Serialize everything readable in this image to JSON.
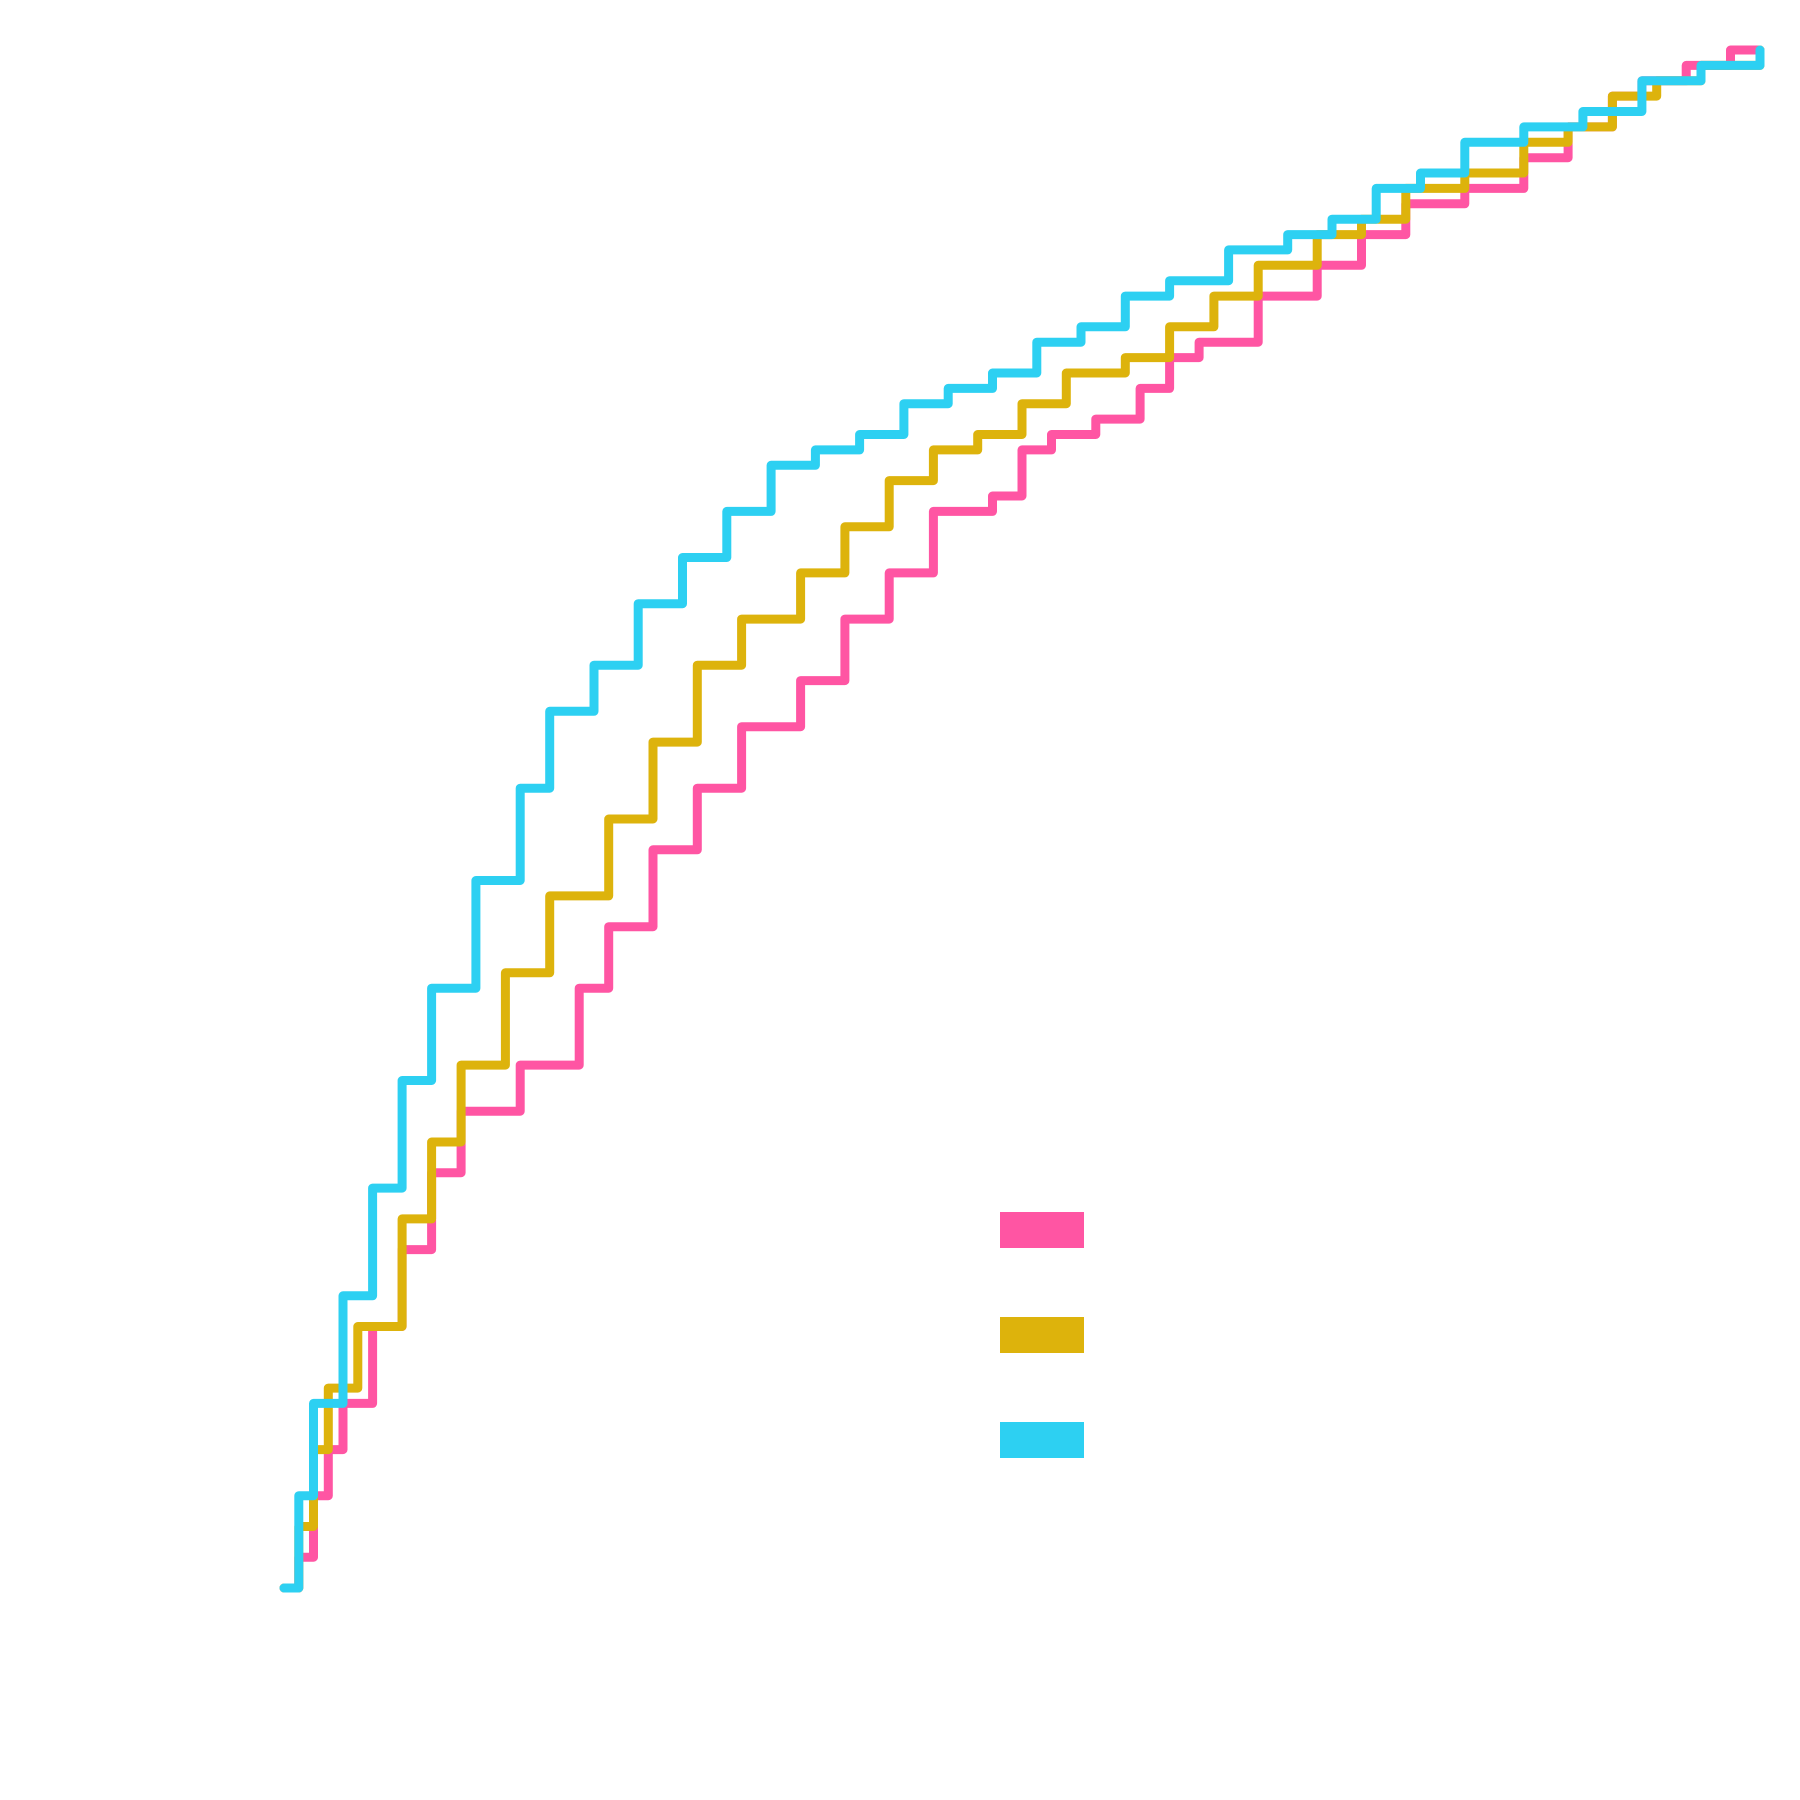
{
  "chart_data": {
    "type": "line",
    "title": "",
    "xlabel": "",
    "ylabel": "",
    "xlim": [
      0,
      1
    ],
    "ylim": [
      0,
      1
    ],
    "grid": false,
    "legend": {
      "position": "center-right",
      "entries": [
        {
          "label": "",
          "color": "#FF55A3"
        },
        {
          "label": "",
          "color": "#DDB30C"
        },
        {
          "label": "",
          "color": "#2DD0F2"
        }
      ]
    },
    "series": [
      {
        "color": "#FF55A3",
        "x": [
          0.0,
          0.01,
          0.02,
          0.03,
          0.04,
          0.06,
          0.08,
          0.1,
          0.12,
          0.16,
          0.2,
          0.22,
          0.25,
          0.28,
          0.31,
          0.35,
          0.38,
          0.41,
          0.44,
          0.48,
          0.5,
          0.52,
          0.55,
          0.58,
          0.6,
          0.62,
          0.66,
          0.7,
          0.73,
          0.76,
          0.8,
          0.84,
          0.87,
          0.9,
          0.92,
          0.95,
          0.98,
          1.0
        ],
        "y": [
          0.0,
          0.02,
          0.06,
          0.09,
          0.12,
          0.17,
          0.22,
          0.27,
          0.31,
          0.34,
          0.39,
          0.43,
          0.48,
          0.52,
          0.56,
          0.59,
          0.63,
          0.66,
          0.7,
          0.71,
          0.74,
          0.75,
          0.76,
          0.78,
          0.8,
          0.81,
          0.84,
          0.86,
          0.88,
          0.9,
          0.91,
          0.93,
          0.95,
          0.97,
          0.98,
          0.99,
          1.0,
          1.0
        ]
      },
      {
        "color": "#DDB30C",
        "x": [
          0.0,
          0.01,
          0.02,
          0.03,
          0.05,
          0.08,
          0.1,
          0.12,
          0.15,
          0.18,
          0.22,
          0.25,
          0.28,
          0.31,
          0.35,
          0.38,
          0.41,
          0.44,
          0.47,
          0.5,
          0.53,
          0.57,
          0.6,
          0.63,
          0.66,
          0.7,
          0.73,
          0.76,
          0.8,
          0.84,
          0.87,
          0.9,
          0.93,
          0.96,
          1.0
        ],
        "y": [
          0.0,
          0.04,
          0.09,
          0.13,
          0.17,
          0.24,
          0.29,
          0.34,
          0.4,
          0.45,
          0.5,
          0.55,
          0.6,
          0.63,
          0.66,
          0.69,
          0.72,
          0.74,
          0.75,
          0.77,
          0.79,
          0.8,
          0.82,
          0.84,
          0.86,
          0.88,
          0.89,
          0.91,
          0.92,
          0.94,
          0.95,
          0.97,
          0.98,
          0.99,
          1.0
        ]
      },
      {
        "color": "#2DD0F2",
        "x": [
          0.0,
          0.01,
          0.02,
          0.04,
          0.06,
          0.08,
          0.1,
          0.13,
          0.16,
          0.18,
          0.21,
          0.24,
          0.27,
          0.3,
          0.33,
          0.36,
          0.39,
          0.42,
          0.45,
          0.48,
          0.51,
          0.54,
          0.57,
          0.6,
          0.64,
          0.68,
          0.71,
          0.74,
          0.77,
          0.8,
          0.84,
          0.88,
          0.92,
          0.96,
          1.0
        ],
        "y": [
          0.0,
          0.06,
          0.12,
          0.19,
          0.26,
          0.33,
          0.39,
          0.46,
          0.52,
          0.57,
          0.6,
          0.64,
          0.67,
          0.7,
          0.73,
          0.74,
          0.75,
          0.77,
          0.78,
          0.79,
          0.81,
          0.82,
          0.84,
          0.85,
          0.87,
          0.88,
          0.89,
          0.91,
          0.92,
          0.94,
          0.95,
          0.96,
          0.98,
          0.99,
          1.0
        ]
      }
    ]
  }
}
